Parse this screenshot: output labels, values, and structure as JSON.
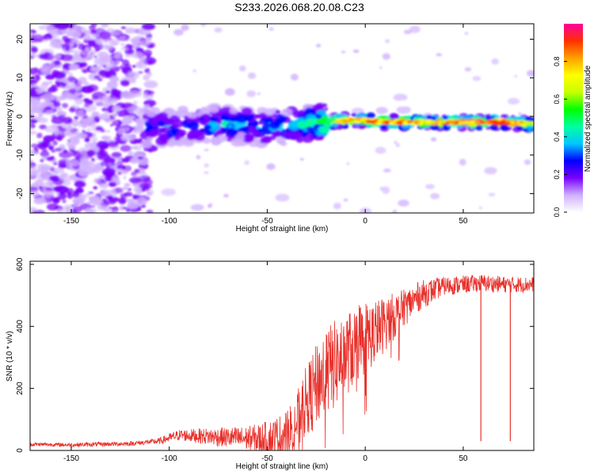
{
  "title": "S233.2026.068.20.08.C23",
  "colors": {
    "snr_line": "#e8302a",
    "spectrogram_low": "#b58cf0",
    "spectrogram_mid": "#00d0e0",
    "spectrogram_high": "#ff2020"
  },
  "chart_data": [
    {
      "type": "heatmap",
      "name": "spectrogram",
      "xlabel": "Height of straight line (km)",
      "ylabel": "Frequency (Hz)",
      "xlim": [
        -171,
        86
      ],
      "ylim": [
        -25,
        24
      ],
      "xticks": [
        -150,
        -100,
        -50,
        0,
        50
      ],
      "xtick_labels": [
        "-150",
        "-100",
        "-50",
        "0",
        "50"
      ],
      "yticks": [
        -20,
        -10,
        0,
        10,
        20
      ],
      "ytick_labels": [
        "-20",
        "-10",
        "0",
        "10",
        "20"
      ],
      "colorbar": {
        "label": "Normalized spectral amplitude",
        "range": [
          0,
          1
        ],
        "ticks": [
          0.0,
          0.2,
          0.4,
          0.6,
          0.8
        ],
        "tick_labels": [
          "0.0",
          "0.2",
          "0.4",
          "0.6",
          "0.8"
        ],
        "colormap": [
          "#ffffff",
          "#d0b0ff",
          "#7a00ff",
          "#0000ff",
          "#00c8ff",
          "#00ffa0",
          "#00ff00",
          "#c8ff00",
          "#ffff00",
          "#ffa000",
          "#ff3000",
          "#ff00a0"
        ]
      },
      "ridge": {
        "description_points_km": [
          -110,
          -90,
          -70,
          -50,
          -30,
          -10,
          0,
          10,
          30,
          50,
          70,
          86
        ],
        "center_hz": [
          -3,
          -2.5,
          -2,
          -3,
          -2,
          -1,
          -1,
          -1.5,
          -1.5,
          -1.5,
          -1.5,
          -2
        ],
        "peak_amplitude": [
          0.35,
          0.35,
          0.4,
          0.4,
          0.5,
          0.85,
          0.9,
          0.9,
          0.8,
          0.95,
          0.95,
          0.7
        ]
      }
    },
    {
      "type": "line",
      "name": "snr",
      "xlabel": "Height of straight line (km)",
      "ylabel": "SNR (10 * v/v)",
      "xlim": [
        -171,
        86
      ],
      "ylim": [
        0,
        610
      ],
      "xticks": [
        -150,
        -100,
        -50,
        0,
        50
      ],
      "xtick_labels": [
        "-150",
        "-100",
        "-50",
        "0",
        "50"
      ],
      "yticks": [
        0,
        200,
        400,
        600
      ],
      "ytick_labels": [
        "0",
        "200",
        "400",
        "600"
      ],
      "envelope": {
        "x": [
          -171,
          -150,
          -120,
          -105,
          -95,
          -80,
          -65,
          -50,
          -42,
          -35,
          -30,
          -22,
          -15,
          -8,
          -2,
          5,
          12,
          20,
          28,
          40,
          50,
          60,
          70,
          86
        ],
        "y": [
          20,
          18,
          22,
          30,
          50,
          45,
          40,
          35,
          45,
          90,
          160,
          240,
          280,
          320,
          360,
          380,
          420,
          460,
          500,
          530,
          535,
          540,
          535,
          535
        ]
      },
      "noise_amplitude": {
        "x": [
          -171,
          -110,
          -60,
          -40,
          -20,
          0,
          20,
          40,
          86
        ],
        "y": [
          6,
          8,
          40,
          80,
          150,
          120,
          60,
          30,
          25
        ]
      },
      "dropouts": [
        {
          "x": 59,
          "y": 30
        },
        {
          "x": 74,
          "y": 30
        }
      ]
    }
  ]
}
